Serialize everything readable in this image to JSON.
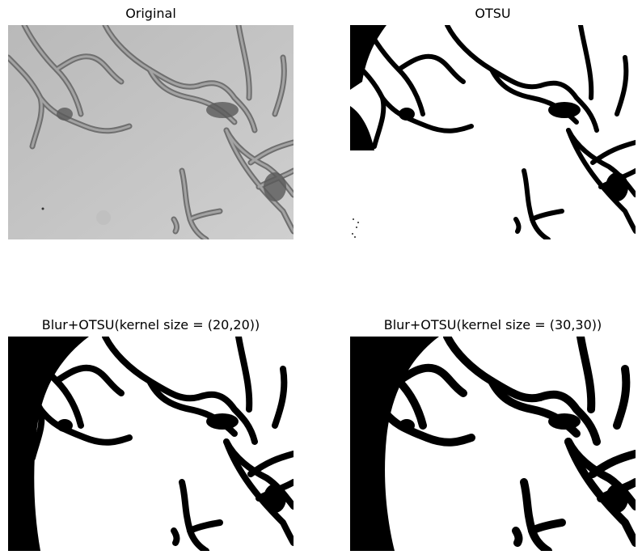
{
  "panels": [
    {
      "title": "Original",
      "image_type": "grayscale-tissue-micrograph"
    },
    {
      "title": "OTSU",
      "image_type": "binary-threshold"
    },
    {
      "title": "Blur+OTSU(kernel size = (20,20))",
      "image_type": "binary-threshold-blurred"
    },
    {
      "title": "Blur+OTSU(kernel size = (30,30))",
      "image_type": "binary-threshold-blurred"
    }
  ],
  "colors": {
    "background": "#ffffff",
    "original_bg": "#c9c9c9",
    "tissue": "#5d5d5d",
    "binary_fg": "#000000"
  }
}
